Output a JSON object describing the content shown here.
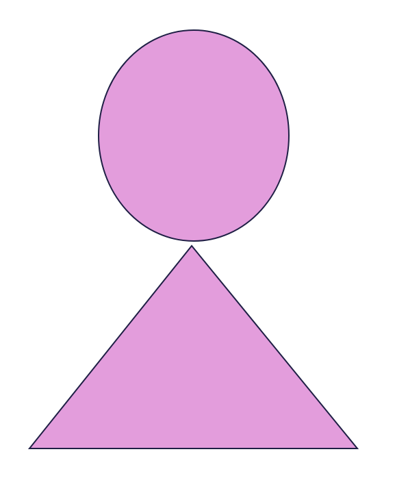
{
  "shapes": {
    "head": {
      "kind": "ellipse",
      "fill": "#e39ddc",
      "stroke": "#1f1f45"
    },
    "body": {
      "kind": "triangle",
      "fill": "#e39ddc",
      "stroke": "#1f1f45"
    }
  },
  "background": "#ffffff"
}
